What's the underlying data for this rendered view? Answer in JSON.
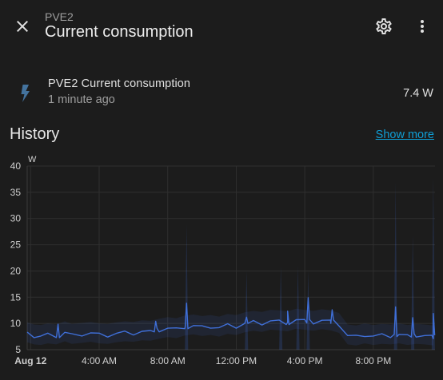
{
  "header": {
    "subtitle": "PVE2",
    "title": "Current consumption",
    "close_icon": "close-icon",
    "settings_icon": "gear-icon",
    "more_icon": "dots-vertical-icon"
  },
  "entity": {
    "icon": "lightning-bolt-icon",
    "name": "PVE2 Current consumption",
    "last_changed": "1 minute ago",
    "state": "7.4 W"
  },
  "history": {
    "title": "History",
    "show_more": "Show more"
  },
  "colors": {
    "accent": "#3f6fd8",
    "link": "#0f9ed5",
    "background": "#1c1c1c"
  },
  "chart_data": {
    "type": "line",
    "ylabel": "W",
    "ylim": [
      5,
      40
    ],
    "yticks": [
      5,
      10,
      15,
      20,
      25,
      30,
      35,
      40
    ],
    "xticks": [
      {
        "label": "Aug 12",
        "hour": 0
      },
      {
        "label": "4:00 AM",
        "hour": 4
      },
      {
        "label": "8:00 AM",
        "hour": 8
      },
      {
        "label": "12:00 PM",
        "hour": 12
      },
      {
        "label": "4:00 PM",
        "hour": 16
      },
      {
        "label": "8:00 PM",
        "hour": 20
      }
    ],
    "xlim_hours": [
      -0.2,
      23.6
    ],
    "grid": true,
    "series": [
      {
        "color": "#3f6fd8",
        "x": [
          -0.2,
          0.2,
          0.6,
          1.0,
          1.5,
          2.0,
          2.4,
          3.0,
          3.5,
          4.0,
          4.5,
          5.0,
          5.5,
          6.0,
          6.5,
          7.0,
          7.5,
          8.0,
          8.5,
          9.0,
          9.5,
          10.0,
          10.5,
          11.0,
          11.5,
          12.0,
          12.5,
          13.0,
          13.5,
          14.0,
          14.5,
          15.0,
          15.5,
          16.0,
          16.5,
          17.0,
          17.5,
          18.0,
          18.5,
          19.0,
          19.5,
          20.0,
          20.5,
          21.0,
          21.5,
          22.0,
          22.5,
          23.0,
          23.5
        ],
        "y": [
          8.0,
          7.6,
          7.5,
          7.8,
          7.6,
          8.2,
          7.7,
          7.9,
          8.1,
          7.8,
          7.7,
          8.0,
          8.2,
          8.1,
          8.4,
          8.3,
          8.7,
          9.0,
          8.8,
          9.3,
          9.5,
          9.2,
          9.4,
          9.1,
          9.6,
          9.4,
          9.9,
          10.2,
          10.0,
          10.4,
          10.3,
          10.1,
          10.6,
          10.4,
          10.2,
          10.5,
          10.3,
          9.8,
          7.6,
          7.4,
          7.8,
          7.5,
          7.7,
          7.6,
          7.8,
          7.5,
          7.7,
          7.6,
          7.4
        ]
      }
    ],
    "spikes": [
      {
        "hour": 1.6,
        "value": 9.5
      },
      {
        "hour": 7.3,
        "value": 10.3
      },
      {
        "hour": 9.1,
        "value": 13.5
      },
      {
        "hour": 12.6,
        "value": 11.5
      },
      {
        "hour": 15.0,
        "value": 12.0
      },
      {
        "hour": 16.2,
        "value": 14.8
      },
      {
        "hour": 17.6,
        "value": 12.5
      },
      {
        "hour": 21.3,
        "value": 12.8
      },
      {
        "hour": 22.3,
        "value": 11.0
      },
      {
        "hour": 23.5,
        "value": 11.8
      }
    ],
    "faint_spikes": [
      {
        "hour": 9.1,
        "value": 29
      },
      {
        "hour": 12.6,
        "value": 20
      },
      {
        "hour": 14.6,
        "value": 21
      },
      {
        "hour": 15.6,
        "value": 21
      },
      {
        "hour": 16.2,
        "value": 20
      },
      {
        "hour": 21.3,
        "value": 37
      },
      {
        "hour": 22.3,
        "value": 27
      },
      {
        "hour": 23.5,
        "value": 38
      }
    ]
  }
}
